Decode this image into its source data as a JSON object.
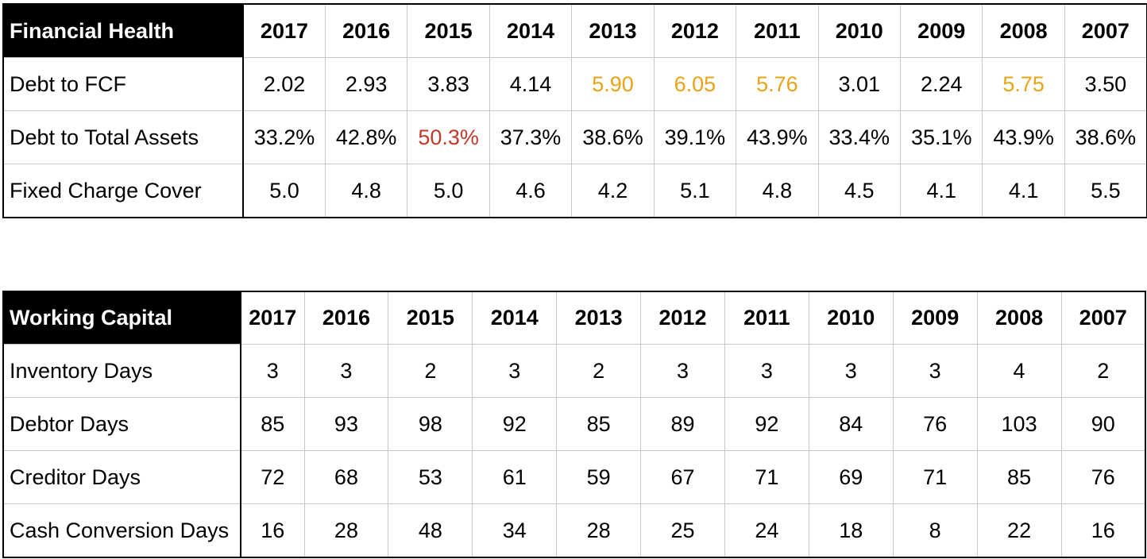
{
  "financial_health": {
    "title": "Financial Health",
    "years": [
      "2017",
      "2016",
      "2015",
      "2014",
      "2013",
      "2012",
      "2011",
      "2010",
      "2009",
      "2008",
      "2007"
    ],
    "rows": [
      {
        "label": "Debt to FCF",
        "values": [
          "2.02",
          "2.93",
          "3.83",
          "4.14",
          "5.90",
          "6.05",
          "5.76",
          "3.01",
          "2.24",
          "5.75",
          "3.50"
        ],
        "highlight": [
          "",
          "",
          "",
          "",
          "amber",
          "amber",
          "amber",
          "",
          "",
          "amber",
          ""
        ]
      },
      {
        "label": "Debt to Total Assets",
        "values": [
          "33.2%",
          "42.8%",
          "50.3%",
          "37.3%",
          "38.6%",
          "39.1%",
          "43.9%",
          "33.4%",
          "35.1%",
          "43.9%",
          "38.6%"
        ],
        "highlight": [
          "",
          "",
          "red",
          "",
          "",
          "",
          "",
          "",
          "",
          "",
          ""
        ]
      },
      {
        "label": "Fixed Charge Cover",
        "values": [
          "5.0",
          "4.8",
          "5.0",
          "4.6",
          "4.2",
          "5.1",
          "4.8",
          "4.5",
          "4.1",
          "4.1",
          "5.5"
        ],
        "highlight": [
          "",
          "",
          "",
          "",
          "",
          "",
          "",
          "",
          "",
          "",
          ""
        ]
      }
    ]
  },
  "working_capital": {
    "title": "Working Capital",
    "years": [
      "2017",
      "2016",
      "2015",
      "2014",
      "2013",
      "2012",
      "2011",
      "2010",
      "2009",
      "2008",
      "2007"
    ],
    "rows": [
      {
        "label": "Inventory Days",
        "values": [
          "3",
          "3",
          "2",
          "3",
          "2",
          "3",
          "3",
          "3",
          "3",
          "4",
          "2"
        ]
      },
      {
        "label": "Debtor Days",
        "values": [
          "85",
          "93",
          "98",
          "92",
          "85",
          "89",
          "92",
          "84",
          "76",
          "103",
          "90"
        ]
      },
      {
        "label": "Creditor Days",
        "values": [
          "72",
          "68",
          "53",
          "61",
          "59",
          "67",
          "71",
          "69",
          "71",
          "85",
          "76"
        ]
      },
      {
        "label": "Cash Conversion Days",
        "values": [
          "16",
          "28",
          "48",
          "34",
          "28",
          "25",
          "24",
          "18",
          "8",
          "22",
          "16"
        ]
      }
    ]
  },
  "colors": {
    "header_bg": "#000000",
    "header_text": "#ffffff",
    "amber": "#e8a317",
    "red": "#c0392b",
    "grid": "#c8c8c8"
  }
}
